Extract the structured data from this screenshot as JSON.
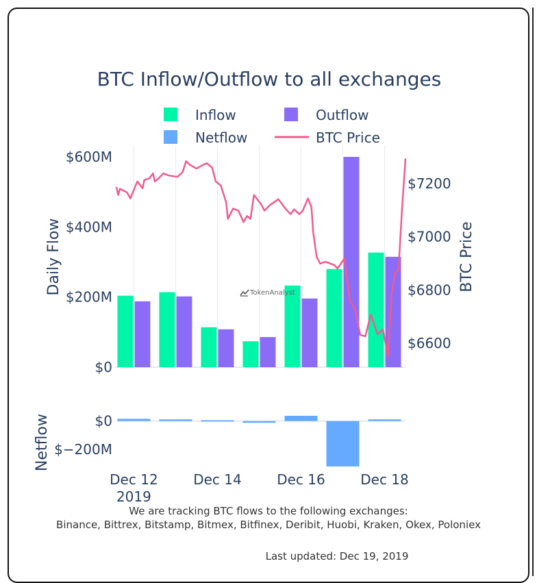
{
  "chart_data": [
    {
      "type": "bar",
      "title": "BTC Inflow/Outflow to all exchanges",
      "ylabel": "Daily Flow",
      "y2label": "BTC Price",
      "ylim": [
        0,
        600
      ],
      "y2lim": [
        6510,
        7300
      ],
      "xlim": [
        "2019-12-11T14:00",
        "2019-12-18T12:00"
      ],
      "yticks": [
        {
          "v": 0,
          "label": "$0"
        },
        {
          "v": 200,
          "label": "$200M"
        },
        {
          "v": 400,
          "label": "$400M"
        },
        {
          "v": 600,
          "label": "$600M"
        }
      ],
      "y2ticks": [
        {
          "v": 6600,
          "label": "$6600"
        },
        {
          "v": 6800,
          "label": "$6800"
        },
        {
          "v": 7000,
          "label": "$7000"
        },
        {
          "v": 7200,
          "label": "$7200"
        }
      ],
      "grid": true,
      "legend_placement": "top",
      "legend": [
        {
          "name": "Inflow",
          "kind": "bar",
          "color": "#00f5a8"
        },
        {
          "name": "Outflow",
          "kind": "bar",
          "color": "#8b6cf6"
        },
        {
          "name": "Netflow",
          "kind": "bar",
          "color": "#66aaff"
        },
        {
          "name": "BTC Price",
          "kind": "line",
          "color": "#ef5b8f"
        }
      ],
      "categories": [
        "2019-12-12",
        "2019-12-13",
        "2019-12-14",
        "2019-12-15",
        "2019-12-16",
        "2019-12-17",
        "2019-12-18"
      ],
      "series": [
        {
          "name": "Inflow",
          "unit": "USD millions",
          "values": [
            204,
            214,
            114,
            74,
            233,
            280,
            327
          ]
        },
        {
          "name": "Outflow",
          "unit": "USD millions",
          "values": [
            188,
            202,
            108,
            86,
            196,
            600,
            315
          ]
        },
        {
          "name": "BTC Price",
          "unit": "USD",
          "points": [
            [
              "2019-12-11T14:00",
              7187
            ],
            [
              "2019-12-11T15:00",
              7157
            ],
            [
              "2019-12-11T16:00",
              7180
            ],
            [
              "2019-12-11T20:00",
              7167
            ],
            [
              "2019-12-11T22:00",
              7144
            ],
            [
              "2019-12-12T02:00",
              7208
            ],
            [
              "2019-12-12T05:00",
              7182
            ],
            [
              "2019-12-12T06:00",
              7213
            ],
            [
              "2019-12-12T09:00",
              7220
            ],
            [
              "2019-12-12T11:00",
              7238
            ],
            [
              "2019-12-12T12:00",
              7208
            ],
            [
              "2019-12-12T14:00",
              7218
            ],
            [
              "2019-12-12T17:00",
              7238
            ],
            [
              "2019-12-12T20:00",
              7230
            ],
            [
              "2019-12-13T01:00",
              7225
            ],
            [
              "2019-12-13T04:00",
              7243
            ],
            [
              "2019-12-13T06:00",
              7284
            ],
            [
              "2019-12-13T08:00",
              7271
            ],
            [
              "2019-12-13T12:00",
              7256
            ],
            [
              "2019-12-13T16:00",
              7271
            ],
            [
              "2019-12-13T18:00",
              7276
            ],
            [
              "2019-12-13T21:00",
              7259
            ],
            [
              "2019-12-13T23:00",
              7208
            ],
            [
              "2019-12-14T02:00",
              7192
            ],
            [
              "2019-12-14T05:00",
              7129
            ],
            [
              "2019-12-14T06:00",
              7067
            ],
            [
              "2019-12-14T09:00",
              7106
            ],
            [
              "2019-12-14T12:00",
              7098
            ],
            [
              "2019-12-14T15:00",
              7055
            ],
            [
              "2019-12-14T17:00",
              7078
            ],
            [
              "2019-12-14T19:00",
              7067
            ],
            [
              "2019-12-14T21:00",
              7157
            ],
            [
              "2019-12-15T01:00",
              7123
            ],
            [
              "2019-12-15T03:00",
              7098
            ],
            [
              "2019-12-15T06:00",
              7118
            ],
            [
              "2019-12-15T11:00",
              7141
            ],
            [
              "2019-12-15T15:00",
              7106
            ],
            [
              "2019-12-15T18:00",
              7085
            ],
            [
              "2019-12-15T20:00",
              7103
            ],
            [
              "2019-12-15T23:00",
              7085
            ],
            [
              "2019-12-16T01:00",
              7098
            ],
            [
              "2019-12-16T04:00",
              7144
            ],
            [
              "2019-12-16T06:00",
              7111
            ],
            [
              "2019-12-16T07:00",
              7016
            ],
            [
              "2019-12-16T09:00",
              6924
            ],
            [
              "2019-12-16T11:00",
              6899
            ],
            [
              "2019-12-16T14:00",
              6906
            ],
            [
              "2019-12-16T19:00",
              6894
            ],
            [
              "2019-12-16T21:00",
              6881
            ],
            [
              "2019-12-17T01:00",
              6919
            ],
            [
              "2019-12-17T04:00",
              6761
            ],
            [
              "2019-12-17T07:00",
              6728
            ],
            [
              "2019-12-17T10:00",
              6631
            ],
            [
              "2019-12-17T13:00",
              6626
            ],
            [
              "2019-12-17T16:00",
              6708
            ],
            [
              "2019-12-17T20:00",
              6634
            ],
            [
              "2019-12-17T23:00",
              6652
            ],
            [
              "2019-12-18T02:00",
              6550
            ],
            [
              "2019-12-18T04:00",
              6787
            ],
            [
              "2019-12-18T06:00",
              6864
            ],
            [
              "2019-12-18T08:00",
              6876
            ],
            [
              "2019-12-18T10:00",
              7103
            ],
            [
              "2019-12-18T12:00",
              7294
            ]
          ]
        }
      ],
      "watermark": "TokenAnalyst"
    },
    {
      "type": "bar",
      "ylabel": "Netflow",
      "ylim": [
        -330,
        85
      ],
      "yticks": [
        {
          "v": 0,
          "label": "$0"
        },
        {
          "v": -200,
          "label": "$−200M"
        }
      ],
      "xticks": [
        {
          "date": "2019-12-12",
          "label": "Dec 12",
          "sub": "2019"
        },
        {
          "date": "2019-12-14",
          "label": "Dec 14"
        },
        {
          "date": "2019-12-16",
          "label": "Dec 16"
        },
        {
          "date": "2019-12-18",
          "label": "Dec 18"
        }
      ],
      "categories": [
        "2019-12-12",
        "2019-12-13",
        "2019-12-14",
        "2019-12-15",
        "2019-12-16",
        "2019-12-17",
        "2019-12-18"
      ],
      "series": [
        {
          "name": "Netflow",
          "unit": "USD millions",
          "values": [
            16,
            12,
            6,
            -12,
            37,
            -320,
            12
          ]
        }
      ]
    }
  ],
  "footer": {
    "tracking": "We are tracking BTC flows to the following exchanges:",
    "exchanges": "Binance, Bittrex, Bitstamp, Bitmex, Bitfinex, Deribit, Huobi, Kraken, Okex, Poloniex",
    "updated": "Last updated: Dec 19, 2019"
  }
}
